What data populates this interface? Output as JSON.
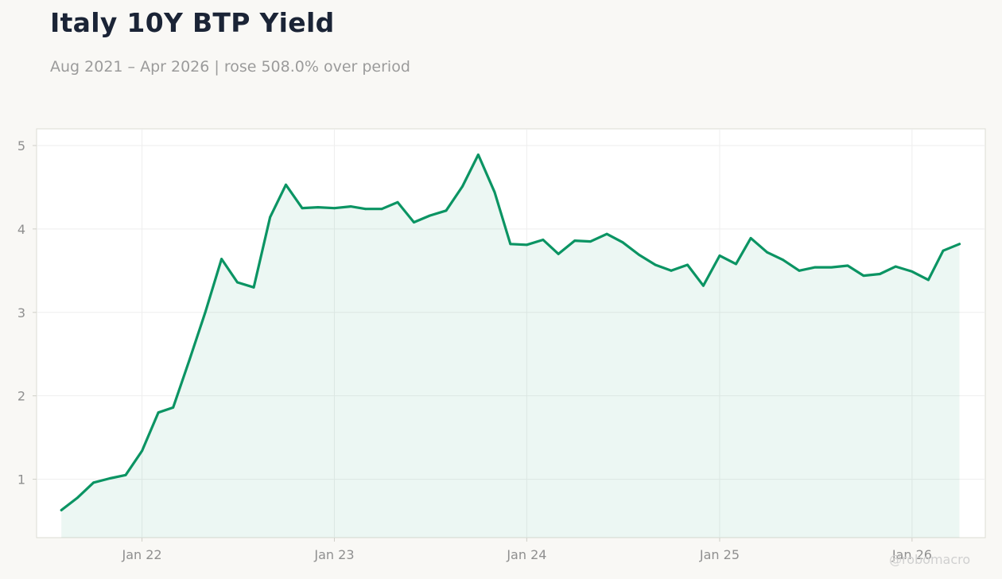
{
  "header": {
    "title": "Italy 10Y BTP Yield",
    "subtitle": "Aug 2021 – Apr 2026 | rose 508.0% over period"
  },
  "watermark": "@robomacro",
  "colors": {
    "line": "#0b9463",
    "fill": "#0b9463",
    "plot_bg": "#ffffff",
    "page_bg": "#f9f8f5"
  },
  "chart_data": {
    "type": "area",
    "title": "Italy 10Y BTP Yield",
    "xlabel": "",
    "ylabel": "",
    "ylim": [
      0.3,
      5.2
    ],
    "xlim": [
      "2021-06-15",
      "2026-05-20"
    ],
    "grid": true,
    "legend": "none",
    "yticks": [
      1,
      2,
      3,
      4,
      5
    ],
    "xticks": [
      {
        "date": "2022-01-01",
        "label": "Jan 22"
      },
      {
        "date": "2023-01-01",
        "label": "Jan 23"
      },
      {
        "date": "2024-01-01",
        "label": "Jan 24"
      },
      {
        "date": "2025-01-01",
        "label": "Jan 25"
      },
      {
        "date": "2026-01-01",
        "label": "Jan 26"
      }
    ],
    "series": [
      {
        "x": [
          "2021-08-01",
          "2021-09-01",
          "2021-10-01",
          "2021-11-01",
          "2021-12-01",
          "2022-01-01",
          "2022-02-01",
          "2022-03-01",
          "2022-04-01",
          "2022-05-01",
          "2022-06-01",
          "2022-07-01",
          "2022-08-01",
          "2022-09-01",
          "2022-10-01",
          "2022-11-01",
          "2022-12-01",
          "2023-01-01",
          "2023-02-01",
          "2023-03-01",
          "2023-04-01",
          "2023-05-01",
          "2023-06-01",
          "2023-07-01",
          "2023-08-01",
          "2023-09-01",
          "2023-10-01",
          "2023-11-01",
          "2023-12-01",
          "2024-01-01",
          "2024-02-01",
          "2024-03-01",
          "2024-04-01",
          "2024-05-01",
          "2024-06-01",
          "2024-07-01",
          "2024-08-01",
          "2024-09-01",
          "2024-10-01",
          "2024-11-01",
          "2024-12-01",
          "2025-01-01",
          "2025-02-01",
          "2025-03-01",
          "2025-04-01",
          "2025-05-01",
          "2025-06-01",
          "2025-07-01",
          "2025-08-01",
          "2025-09-01",
          "2025-10-01",
          "2025-11-01",
          "2025-12-01",
          "2026-01-01",
          "2026-02-01",
          "2026-03-01",
          "2026-04-01"
        ],
        "values": [
          0.63,
          0.78,
          0.96,
          1.01,
          1.05,
          1.34,
          1.8,
          1.86,
          2.43,
          3.0,
          3.64,
          3.36,
          3.3,
          4.14,
          4.53,
          4.25,
          4.26,
          4.25,
          4.27,
          4.24,
          4.24,
          4.32,
          4.08,
          4.16,
          4.22,
          4.51,
          4.89,
          4.44,
          3.82,
          3.81,
          3.87,
          3.7,
          3.86,
          3.85,
          3.94,
          3.84,
          3.69,
          3.57,
          3.5,
          3.57,
          3.32,
          3.68,
          3.58,
          3.89,
          3.72,
          3.63,
          3.5,
          3.54,
          3.54,
          3.56,
          3.44,
          3.46,
          3.55,
          3.49,
          3.39,
          3.74,
          3.82
        ]
      }
    ]
  }
}
